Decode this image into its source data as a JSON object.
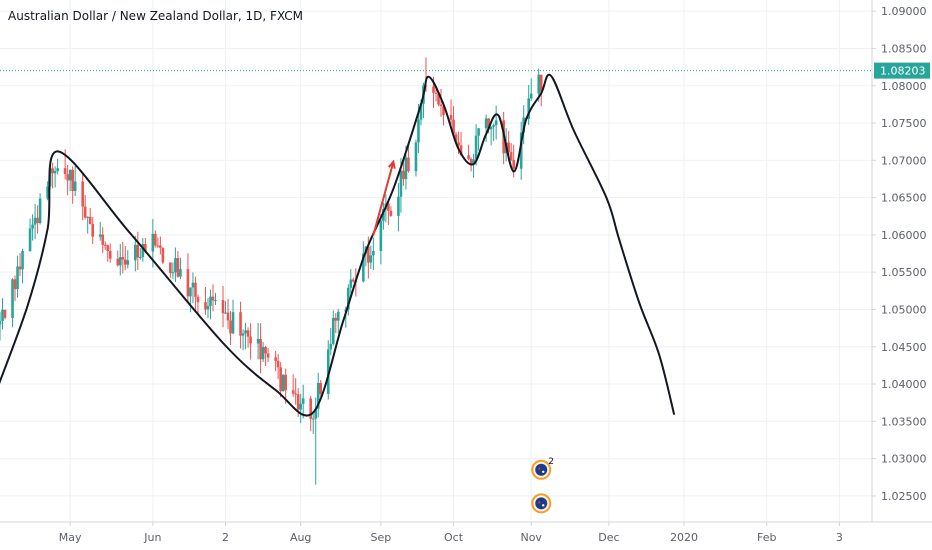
{
  "chart_data": {
    "type": "candlestick",
    "title": "Australian Dollar / New Zealand Dollar, 1D, FXCM",
    "last_price": 1.08203,
    "last_price_label": "1.08203",
    "colors": {
      "up": "#26a69a",
      "down": "#ef5350",
      "drawing": "#131722",
      "arrow": "#e53935",
      "price_line": "#26a69a"
    },
    "ylim": [
      1.0215,
      1.0915
    ],
    "y_ticks": [
      {
        "value": 1.09,
        "label": "1.09000"
      },
      {
        "value": 1.085,
        "label": "1.08500"
      },
      {
        "value": 1.08,
        "label": "1.08000"
      },
      {
        "value": 1.075,
        "label": "1.07500"
      },
      {
        "value": 1.07,
        "label": "1.07000"
      },
      {
        "value": 1.065,
        "label": "1.06500"
      },
      {
        "value": 1.06,
        "label": "1.06000"
      },
      {
        "value": 1.055,
        "label": "1.05500"
      },
      {
        "value": 1.05,
        "label": "1.05000"
      },
      {
        "value": 1.045,
        "label": "1.04500"
      },
      {
        "value": 1.04,
        "label": "1.04000"
      },
      {
        "value": 1.035,
        "label": "1.03500"
      },
      {
        "value": 1.03,
        "label": "1.03000"
      },
      {
        "value": 1.025,
        "label": "1.02500"
      }
    ],
    "x_ticks": [
      {
        "date": "2019-05-01",
        "label": "May"
      },
      {
        "date": "2019-06-03",
        "label": "Jun"
      },
      {
        "date": "2019-07-02",
        "label": "2"
      },
      {
        "date": "2019-08-01",
        "label": "Aug"
      },
      {
        "date": "2019-09-02",
        "label": "Sep"
      },
      {
        "date": "2019-10-01",
        "label": "Oct"
      },
      {
        "date": "2019-11-01",
        "label": "Nov"
      },
      {
        "date": "2019-12-02",
        "label": "Dec"
      },
      {
        "date": "2020-01-01",
        "label": "2020"
      },
      {
        "date": "2020-02-03",
        "label": "Feb"
      },
      {
        "date": "2020-03-03",
        "label": "3"
      }
    ],
    "x_range": [
      "2019-04-03",
      "2020-03-16"
    ],
    "anchors": [
      {
        "date": "2019-04-03",
        "price": 1.048
      },
      {
        "date": "2019-04-26",
        "price": 1.0705
      },
      {
        "date": "2019-05-08",
        "price": 1.0625
      },
      {
        "date": "2019-05-20",
        "price": 1.0565
      },
      {
        "date": "2019-06-03",
        "price": 1.0585
      },
      {
        "date": "2019-06-17",
        "price": 1.0535
      },
      {
        "date": "2019-07-01",
        "price": 1.0495
      },
      {
        "date": "2019-07-15",
        "price": 1.045
      },
      {
        "date": "2019-07-26",
        "price": 1.0395
      },
      {
        "date": "2019-08-06",
        "price": 1.0355
      },
      {
        "date": "2019-08-14",
        "price": 1.048
      },
      {
        "date": "2019-08-28",
        "price": 1.058
      },
      {
        "date": "2019-09-09",
        "price": 1.066
      },
      {
        "date": "2019-09-16",
        "price": 1.073
      },
      {
        "date": "2019-09-19",
        "price": 1.081
      },
      {
        "date": "2019-09-26",
        "price": 1.0775
      },
      {
        "date": "2019-10-07",
        "price": 1.0705
      },
      {
        "date": "2019-10-14",
        "price": 1.0745
      },
      {
        "date": "2019-10-18",
        "price": 1.0755
      },
      {
        "date": "2019-10-25",
        "price": 1.0675
      },
      {
        "date": "2019-10-31",
        "price": 1.0785
      },
      {
        "date": "2019-11-05",
        "price": 1.0805
      }
    ],
    "drawings": [
      {
        "type": "path",
        "name": "pattern-path",
        "points": [
          [
            "2019-04-02",
            1.0395
          ],
          [
            "2019-04-14",
            1.0505
          ],
          [
            "2019-04-22",
            1.0608
          ],
          [
            "2019-04-26",
            1.0712
          ],
          [
            "2019-05-25",
            1.0602
          ],
          [
            "2019-07-01",
            1.0455
          ],
          [
            "2019-07-22",
            1.0392
          ],
          [
            "2019-08-06",
            1.0362
          ],
          [
            "2019-08-18",
            1.0485
          ],
          [
            "2019-08-27",
            1.0578
          ],
          [
            "2019-09-07",
            1.0662
          ],
          [
            "2019-09-18",
            1.0775
          ],
          [
            "2019-09-21",
            1.0812
          ],
          [
            "2019-09-27",
            1.0775
          ],
          [
            "2019-10-03",
            1.0715
          ],
          [
            "2019-10-09",
            1.0695
          ],
          [
            "2019-10-14",
            1.0735
          ],
          [
            "2019-10-19",
            1.076
          ],
          [
            "2019-10-25",
            1.0685
          ],
          [
            "2019-10-30",
            1.0755
          ],
          [
            "2019-11-05",
            1.079
          ],
          [
            "2019-11-09",
            1.0813
          ],
          [
            "2019-11-18",
            1.074
          ],
          [
            "2019-12-01",
            1.065
          ],
          [
            "2019-12-06",
            1.0595
          ],
          [
            "2019-12-14",
            1.051
          ],
          [
            "2019-12-22",
            1.044
          ],
          [
            "2019-12-28",
            1.036
          ]
        ]
      },
      {
        "type": "path",
        "name": "red-arrow-line",
        "points": [
          [
            "2019-08-30",
            1.06
          ],
          [
            "2019-09-07",
            1.0698
          ]
        ]
      }
    ],
    "events": [
      {
        "date": "2019-11-05",
        "price": 1.0285,
        "badge": "2"
      },
      {
        "date": "2019-11-05",
        "price": 1.024,
        "badge": ""
      }
    ]
  }
}
